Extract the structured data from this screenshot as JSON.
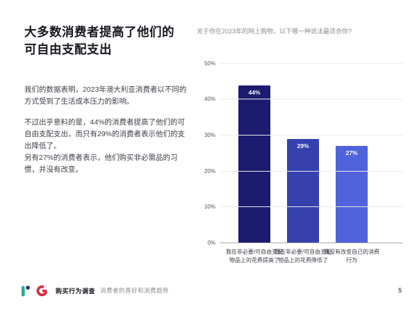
{
  "page": {
    "title_line1": "大多数消费者提高了他们的",
    "title_line2": "可自由支配支出",
    "paragraphs": [
      "我们的数据表明，2023年澳大利亚消费者以不同的方式受到了生活成本压力的影响。",
      "不过出乎意料的是，44%的消费者提高了他们的可自由支配支出，而只有29%的消费者表示他们的支出降低了。",
      "另有27%的消费者表示，他们购买非必需品的习惯，并没有改变。"
    ],
    "page_number": "5"
  },
  "footer": {
    "brand_bold": "购买行为调查",
    "brand_light": "消费者的喜好和消费趋势",
    "logo_colors": {
      "r_bar": "#2fa98c",
      "r_dot": "#232a72",
      "g_mark": "#d6293a"
    }
  },
  "chart_data": {
    "type": "bar",
    "title": "关于你在2023年的网上购物，以下哪一种说法最适合你?",
    "categories": [
      "我在非必要/可自由支配物品上的花费提高了",
      "我在非必要/可自由支配物品上的花费降低了",
      "我没有改变自己的消费行为"
    ],
    "values": [
      44,
      29,
      27
    ],
    "value_labels": [
      "44%",
      "29%",
      "27%"
    ],
    "bar_colors": [
      "#1b1b6f",
      "#3640ae",
      "#5063dc"
    ],
    "xlabel": "",
    "ylabel": "",
    "ylim": [
      0,
      50
    ],
    "yticks": [
      "0%",
      "10%",
      "20%",
      "30%",
      "40%",
      "50%"
    ],
    "grid": true,
    "legend": false
  }
}
